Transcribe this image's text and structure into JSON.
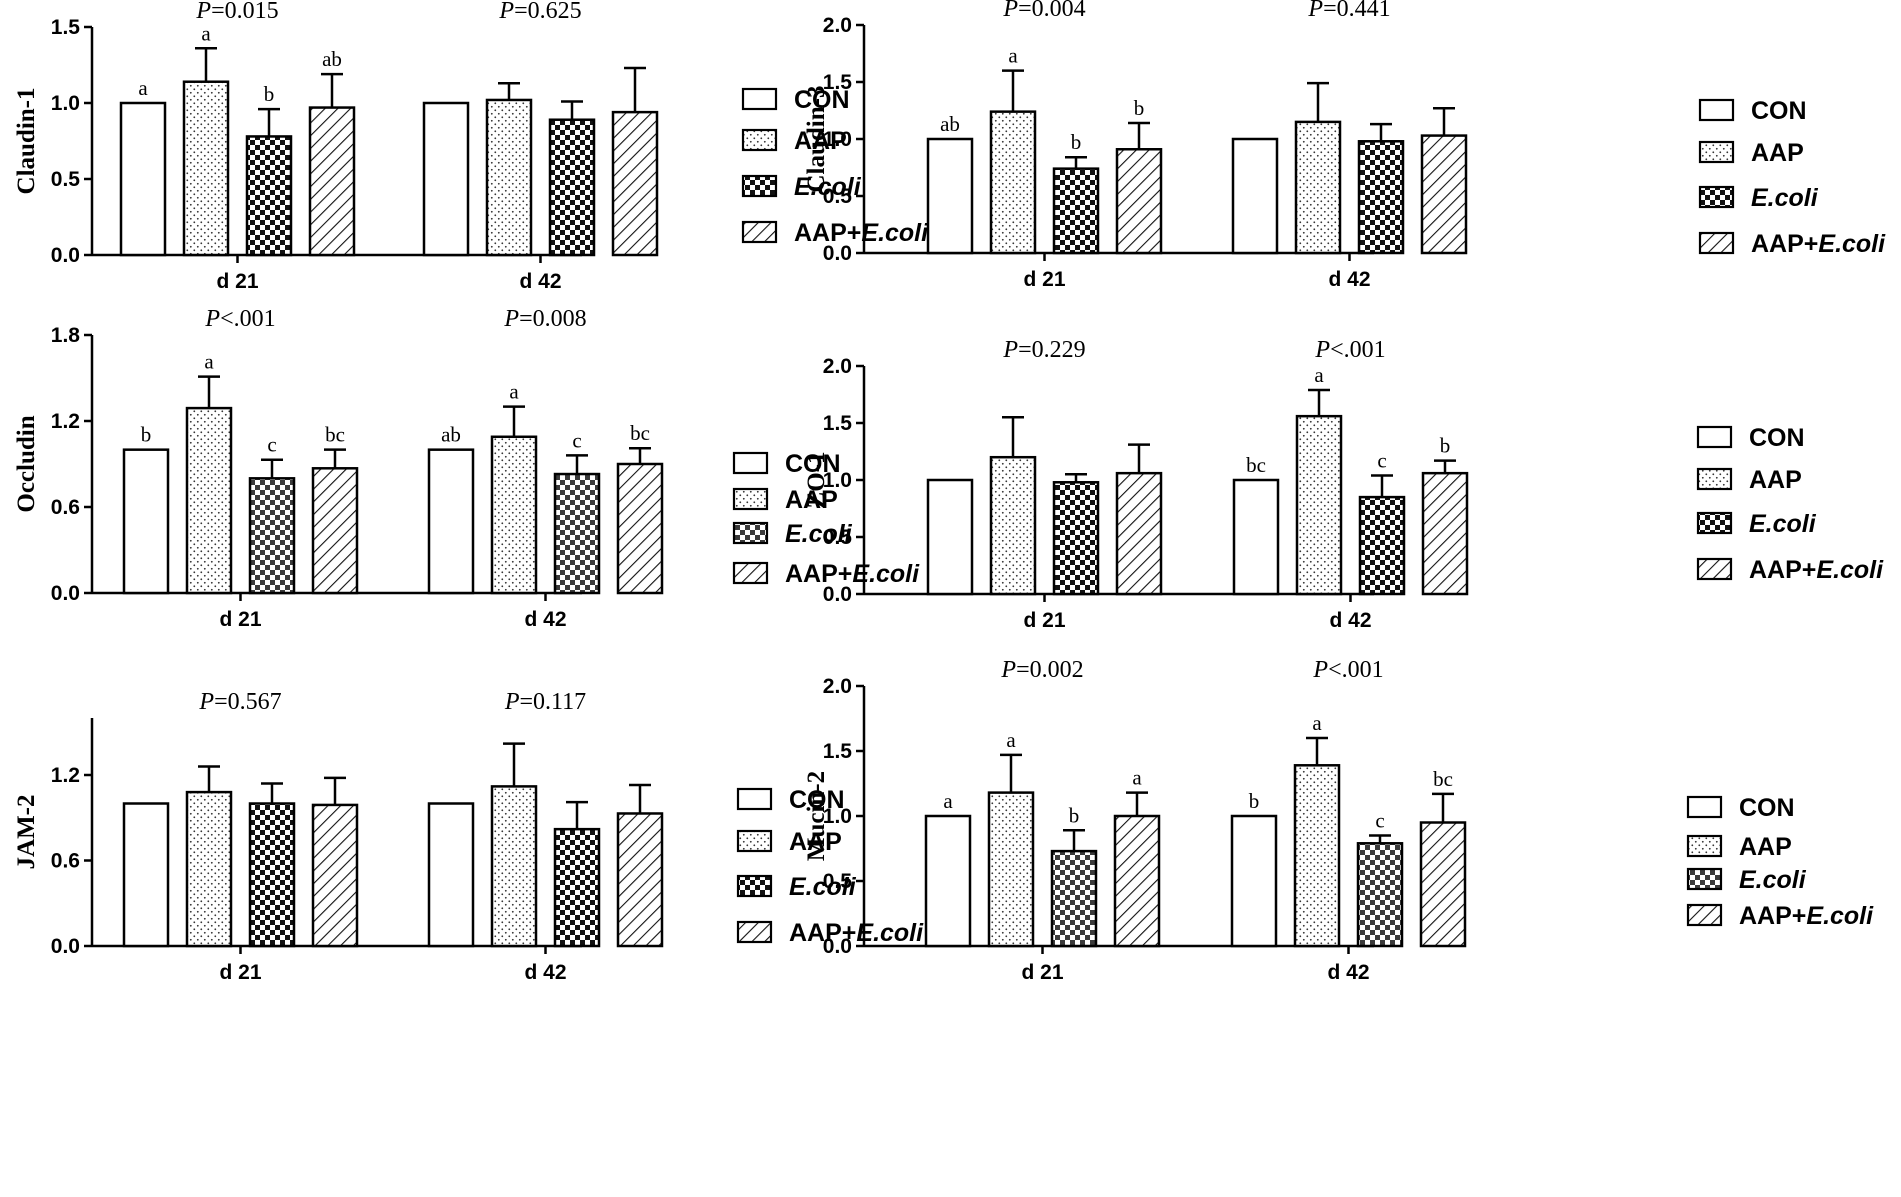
{
  "legend": {
    "labels": [
      "CON",
      "AAP",
      "E.coli",
      "AAP+E.coli"
    ],
    "italic_part": [
      "",
      "",
      "E.coli",
      "E.coli"
    ],
    "plain_part": [
      "CON",
      "AAP",
      "",
      "AAP+"
    ]
  },
  "chart_data": [
    {
      "type": "bar",
      "ylabel": "Claudin-1",
      "ylim": [
        0,
        1.5
      ],
      "yticks": [
        "0.0",
        "0.5",
        "1.0",
        "1.5"
      ],
      "ytick_values": [
        0,
        0.5,
        1.0,
        1.5
      ],
      "categories": [
        "d 21",
        "d 42"
      ],
      "pvalues": [
        "=0.015",
        "=0.625"
      ],
      "series": [
        {
          "name": "CON",
          "values": [
            1.0,
            1.0
          ],
          "errors": [
            0,
            0
          ],
          "letters": [
            "a",
            ""
          ]
        },
        {
          "name": "AAP",
          "values": [
            1.14,
            1.02
          ],
          "errors": [
            0.22,
            0.11
          ],
          "letters": [
            "a",
            ""
          ]
        },
        {
          "name": "E.coli",
          "values": [
            0.78,
            0.89
          ],
          "errors": [
            0.18,
            0.12
          ],
          "letters": [
            "b",
            ""
          ]
        },
        {
          "name": "AAP+E.coli",
          "values": [
            0.97,
            0.94
          ],
          "errors": [
            0.22,
            0.29
          ],
          "letters": [
            "ab",
            ""
          ]
        }
      ]
    },
    {
      "type": "bar",
      "ylabel": "Claudin-3",
      "ylim": [
        0,
        2.0
      ],
      "yticks": [
        "0.0",
        "0.5",
        "1.0",
        "1.5",
        "2.0"
      ],
      "ytick_values": [
        0,
        0.5,
        1.0,
        1.5,
        2.0
      ],
      "categories": [
        "d 21",
        "d 42"
      ],
      "pvalues": [
        "=0.004",
        "=0.441"
      ],
      "series": [
        {
          "name": "CON",
          "values": [
            1.0,
            1.0
          ],
          "errors": [
            0,
            0
          ],
          "letters": [
            "ab",
            ""
          ]
        },
        {
          "name": "AAP",
          "values": [
            1.24,
            1.15
          ],
          "errors": [
            0.36,
            0.34
          ],
          "letters": [
            "a",
            ""
          ]
        },
        {
          "name": "E.coli",
          "values": [
            0.74,
            0.98
          ],
          "errors": [
            0.1,
            0.15
          ],
          "letters": [
            "b",
            ""
          ]
        },
        {
          "name": "AAP+E.coli",
          "values": [
            0.91,
            1.03
          ],
          "errors": [
            0.23,
            0.24
          ],
          "letters": [
            "b",
            ""
          ]
        }
      ]
    },
    {
      "type": "bar",
      "ylabel": "Occludin",
      "ylim": [
        0,
        1.8
      ],
      "yticks": [
        "0.0",
        "0.6",
        "1.2",
        "1.8"
      ],
      "ytick_values": [
        0,
        0.6,
        1.2,
        1.8
      ],
      "categories": [
        "d 21",
        "d 42"
      ],
      "pvalues": [
        "<.001",
        "=0.008"
      ],
      "series": [
        {
          "name": "CON",
          "values": [
            1.0,
            1.0
          ],
          "errors": [
            0,
            0
          ],
          "letters": [
            "b",
            "ab"
          ]
        },
        {
          "name": "AAP",
          "values": [
            1.29,
            1.09
          ],
          "errors": [
            0.22,
            0.21
          ],
          "letters": [
            "a",
            "a"
          ]
        },
        {
          "name": "E.coli",
          "values": [
            0.8,
            0.83
          ],
          "errors": [
            0.13,
            0.13
          ],
          "letters": [
            "c",
            "c"
          ]
        },
        {
          "name": "AAP+E.coli",
          "values": [
            0.87,
            0.9
          ],
          "errors": [
            0.13,
            0.11
          ],
          "letters": [
            "bc",
            "bc"
          ]
        }
      ]
    },
    {
      "type": "bar",
      "ylabel": "ZO-1",
      "ylim": [
        0,
        2.0
      ],
      "yticks": [
        "0.0",
        "0.5",
        "1.0",
        "1.5",
        "2.0"
      ],
      "ytick_values": [
        0,
        0.5,
        1.0,
        1.5,
        2.0
      ],
      "categories": [
        "d 21",
        "d 42"
      ],
      "pvalues": [
        "=0.229",
        "<.001"
      ],
      "series": [
        {
          "name": "CON",
          "values": [
            1.0,
            1.0
          ],
          "errors": [
            0,
            0
          ],
          "letters": [
            "",
            "bc"
          ]
        },
        {
          "name": "AAP",
          "values": [
            1.2,
            1.56
          ],
          "errors": [
            0.35,
            0.23
          ],
          "letters": [
            "",
            "a"
          ]
        },
        {
          "name": "E.coli",
          "values": [
            0.98,
            0.85
          ],
          "errors": [
            0.07,
            0.19
          ],
          "letters": [
            "",
            "c"
          ]
        },
        {
          "name": "AAP+E.coli",
          "values": [
            1.06,
            1.06
          ],
          "errors": [
            0.25,
            0.11
          ],
          "letters": [
            "",
            "b"
          ]
        }
      ]
    },
    {
      "type": "bar",
      "ylabel": "JAM-2",
      "ylim": [
        0,
        1.6
      ],
      "yticks": [
        "0.0",
        "0.6",
        "1.2"
      ],
      "ytick_values": [
        0,
        0.6,
        1.2
      ],
      "categories": [
        "d 21",
        "d 42"
      ],
      "pvalues": [
        "=0.567",
        "=0.117"
      ],
      "series": [
        {
          "name": "CON",
          "values": [
            1.0,
            1.0
          ],
          "errors": [
            0,
            0
          ],
          "letters": [
            "",
            ""
          ]
        },
        {
          "name": "AAP",
          "values": [
            1.08,
            1.12
          ],
          "errors": [
            0.18,
            0.3
          ],
          "letters": [
            "",
            ""
          ]
        },
        {
          "name": "E.coli",
          "values": [
            1.0,
            0.82
          ],
          "errors": [
            0.14,
            0.19
          ],
          "letters": [
            "",
            ""
          ]
        },
        {
          "name": "AAP+E.coli",
          "values": [
            0.99,
            0.93
          ],
          "errors": [
            0.19,
            0.2
          ],
          "letters": [
            "",
            ""
          ]
        }
      ]
    },
    {
      "type": "bar",
      "ylabel": "Mucin-2",
      "ylim": [
        0,
        2.0
      ],
      "yticks": [
        "0.0",
        "0.5",
        "1.0",
        "1.5",
        "2.0"
      ],
      "ytick_values": [
        0,
        0.5,
        1.0,
        1.5,
        2.0
      ],
      "categories": [
        "d 21",
        "d 42"
      ],
      "pvalues": [
        "=0.002",
        "<.001"
      ],
      "series": [
        {
          "name": "CON",
          "values": [
            1.0,
            1.0
          ],
          "errors": [
            0,
            0
          ],
          "letters": [
            "a",
            "b"
          ]
        },
        {
          "name": "AAP",
          "values": [
            1.18,
            1.39
          ],
          "errors": [
            0.29,
            0.21
          ],
          "letters": [
            "a",
            "a"
          ]
        },
        {
          "name": "E.coli",
          "values": [
            0.73,
            0.79
          ],
          "errors": [
            0.16,
            0.06
          ],
          "letters": [
            "b",
            "c"
          ]
        },
        {
          "name": "AAP+E.coli",
          "values": [
            1.0,
            0.95
          ],
          "errors": [
            0.18,
            0.22
          ],
          "letters": [
            "a",
            "bc"
          ]
        }
      ]
    }
  ]
}
